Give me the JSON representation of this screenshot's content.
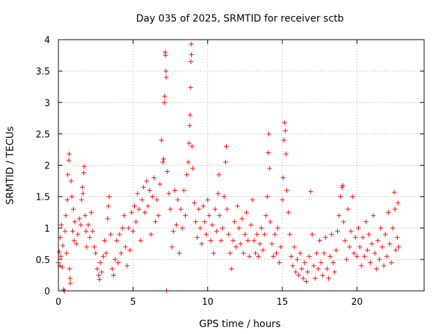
{
  "chart_data": {
    "type": "scatter",
    "title": "Day 035 of 2025, SRMTID for receiver sctb",
    "xlabel": "GPS time / hours",
    "ylabel": "SRMTID / TECUs",
    "xlim": [
      0,
      24.5
    ],
    "ylim": [
      0,
      4
    ],
    "xticks": [
      0,
      5,
      10,
      15,
      20
    ],
    "xtick_labels": [
      "0",
      "5",
      "10",
      "15",
      "20"
    ],
    "yticks": [
      0,
      0.5,
      1,
      1.5,
      2,
      2.5,
      3,
      3.5,
      4
    ],
    "ytick_labels": [
      "0",
      "0.5",
      "1",
      "1.5",
      "2",
      "2.5",
      "3",
      "3.5",
      "4"
    ],
    "grid": true,
    "marker": "+",
    "color": "#ff0000",
    "series": [
      {
        "name": "SRMTID",
        "points": [
          [
            0.0,
            0.45
          ],
          [
            0.05,
            0.62
          ],
          [
            0.1,
            0.4
          ],
          [
            0.12,
            0.85
          ],
          [
            0.15,
            0.55
          ],
          [
            0.2,
            1.05
          ],
          [
            0.25,
            0.38
          ],
          [
            0.3,
            0.72
          ],
          [
            0.35,
            0.02
          ],
          [
            0.4,
            0.0
          ],
          [
            0.45,
            0.95
          ],
          [
            0.5,
            1.2
          ],
          [
            0.55,
            0.6
          ],
          [
            0.6,
            1.45
          ],
          [
            0.62,
            1.85
          ],
          [
            0.7,
            2.08
          ],
          [
            0.72,
            2.18
          ],
          [
            0.75,
            0.35
          ],
          [
            0.78,
            0.2
          ],
          [
            0.8,
            0.12
          ],
          [
            0.85,
            1.75
          ],
          [
            0.9,
            1.5
          ],
          [
            0.95,
            0.95
          ],
          [
            1.0,
            1.3
          ],
          [
            1.05,
            0.8
          ],
          [
            1.1,
            1.1
          ],
          [
            1.2,
            0.75
          ],
          [
            1.3,
            0.9
          ],
          [
            1.4,
            1.15
          ],
          [
            1.5,
            1.05
          ],
          [
            1.55,
            1.45
          ],
          [
            1.6,
            1.65
          ],
          [
            1.65,
            1.55
          ],
          [
            1.7,
            1.88
          ],
          [
            1.72,
            1.98
          ],
          [
            1.8,
            1.2
          ],
          [
            1.85,
            0.95
          ],
          [
            1.9,
            0.7
          ],
          [
            2.0,
            1.05
          ],
          [
            2.1,
            0.85
          ],
          [
            2.2,
            1.25
          ],
          [
            2.3,
            0.95
          ],
          [
            2.4,
            0.7
          ],
          [
            2.5,
            0.6
          ],
          [
            2.6,
            0.35
          ],
          [
            2.7,
            0.25
          ],
          [
            2.75,
            0.18
          ],
          [
            2.8,
            0.45
          ],
          [
            2.9,
            0.3
          ],
          [
            3.0,
            0.55
          ],
          [
            3.1,
            0.8
          ],
          [
            3.2,
            0.6
          ],
          [
            3.3,
            1.15
          ],
          [
            3.35,
            1.35
          ],
          [
            3.4,
            1.5
          ],
          [
            3.5,
            0.9
          ],
          [
            3.6,
            0.35
          ],
          [
            3.7,
            0.25
          ],
          [
            3.8,
            0.5
          ],
          [
            3.9,
            0.8
          ],
          [
            4.0,
            0.45
          ],
          [
            4.1,
            0.9
          ],
          [
            4.2,
            0.6
          ],
          [
            4.3,
            1.0
          ],
          [
            4.4,
            1.2
          ],
          [
            4.5,
            0.7
          ],
          [
            4.6,
            0.4
          ],
          [
            4.7,
            1.0
          ],
          [
            4.8,
            0.65
          ],
          [
            4.9,
            1.25
          ],
          [
            5.0,
            0.95
          ],
          [
            5.1,
            1.35
          ],
          [
            5.2,
            1.1
          ],
          [
            5.3,
            1.55
          ],
          [
            5.4,
            1.3
          ],
          [
            5.5,
            0.8
          ],
          [
            5.6,
            1.45
          ],
          [
            5.7,
            1.65
          ],
          [
            5.8,
            1.25
          ],
          [
            5.9,
            1.75
          ],
          [
            6.0,
            1.35
          ],
          [
            6.1,
            1.6
          ],
          [
            6.2,
            0.9
          ],
          [
            6.3,
            1.5
          ],
          [
            6.4,
            1.8
          ],
          [
            6.5,
            1.1
          ],
          [
            6.6,
            1.45
          ],
          [
            6.7,
            1.2
          ],
          [
            6.8,
            1.7
          ],
          [
            6.9,
            2.4
          ],
          [
            7.0,
            2.05
          ],
          [
            7.05,
            2.1
          ],
          [
            7.1,
            3.0
          ],
          [
            7.12,
            3.1
          ],
          [
            7.15,
            3.8
          ],
          [
            7.18,
            3.75
          ],
          [
            7.2,
            3.5
          ],
          [
            7.22,
            3.4
          ],
          [
            7.25,
            0.0
          ],
          [
            7.3,
            1.9
          ],
          [
            7.4,
            1.55
          ],
          [
            7.5,
            1.3
          ],
          [
            7.6,
            0.7
          ],
          [
            7.7,
            0.95
          ],
          [
            7.8,
            1.6
          ],
          [
            7.9,
            1.05
          ],
          [
            8.0,
            1.45
          ],
          [
            8.1,
            0.6
          ],
          [
            8.2,
            1.3
          ],
          [
            8.3,
            1.0
          ],
          [
            8.4,
            1.6
          ],
          [
            8.5,
            1.2
          ],
          [
            8.6,
            1.85
          ],
          [
            8.7,
            2.05
          ],
          [
            8.75,
            2.35
          ],
          [
            8.8,
            2.63
          ],
          [
            8.82,
            2.8
          ],
          [
            8.85,
            3.24
          ],
          [
            8.88,
            3.65
          ],
          [
            8.9,
            3.93
          ],
          [
            8.92,
            3.76
          ],
          [
            8.95,
            2.3
          ],
          [
            9.0,
            1.95
          ],
          [
            9.1,
            1.4
          ],
          [
            9.2,
            1.1
          ],
          [
            9.3,
            0.85
          ],
          [
            9.4,
            1.3
          ],
          [
            9.5,
            1.0
          ],
          [
            9.6,
            0.75
          ],
          [
            9.7,
            1.35
          ],
          [
            9.8,
            1.1
          ],
          [
            9.9,
            0.9
          ],
          [
            10.0,
            1.45
          ],
          [
            10.1,
            1.2
          ],
          [
            10.2,
            0.8
          ],
          [
            10.3,
            1.05
          ],
          [
            10.4,
            0.6
          ],
          [
            10.5,
            1.3
          ],
          [
            10.6,
            0.95
          ],
          [
            10.7,
            1.55
          ],
          [
            10.75,
            1.85
          ],
          [
            10.8,
            1.2
          ],
          [
            10.9,
            0.8
          ],
          [
            11.0,
            1.0
          ],
          [
            11.1,
            1.5
          ],
          [
            11.2,
            2.05
          ],
          [
            11.25,
            2.3
          ],
          [
            11.3,
            1.3
          ],
          [
            11.4,
            0.9
          ],
          [
            11.5,
            0.6
          ],
          [
            11.6,
            0.35
          ],
          [
            11.7,
            0.8
          ],
          [
            11.8,
            1.1
          ],
          [
            11.9,
            0.7
          ],
          [
            12.0,
            1.35
          ],
          [
            12.1,
            1.0
          ],
          [
            12.2,
            0.75
          ],
          [
            12.3,
            1.15
          ],
          [
            12.4,
            0.6
          ],
          [
            12.5,
            0.9
          ],
          [
            12.6,
            1.25
          ],
          [
            12.7,
            0.8
          ],
          [
            12.8,
            0.55
          ],
          [
            12.9,
            1.05
          ],
          [
            13.0,
            1.45
          ],
          [
            13.1,
            0.8
          ],
          [
            13.2,
            0.6
          ],
          [
            13.3,
            0.9
          ],
          [
            13.4,
            0.55
          ],
          [
            13.5,
            0.75
          ],
          [
            13.6,
            1.0
          ],
          [
            13.7,
            0.65
          ],
          [
            13.8,
            0.9
          ],
          [
            13.9,
            1.2
          ],
          [
            14.0,
            1.5
          ],
          [
            14.05,
            2.2
          ],
          [
            14.1,
            2.5
          ],
          [
            14.15,
            1.95
          ],
          [
            14.2,
            1.1
          ],
          [
            14.3,
            0.75
          ],
          [
            14.4,
            0.55
          ],
          [
            14.5,
            0.9
          ],
          [
            14.6,
            0.6
          ],
          [
            14.7,
            1.0
          ],
          [
            14.8,
            0.45
          ],
          [
            14.9,
            0.7
          ],
          [
            15.0,
            1.45
          ],
          [
            15.05,
            1.8
          ],
          [
            15.1,
            2.4
          ],
          [
            15.15,
            2.68
          ],
          [
            15.2,
            2.55
          ],
          [
            15.25,
            2.18
          ],
          [
            15.3,
            1.6
          ],
          [
            15.4,
            1.25
          ],
          [
            15.5,
            0.9
          ],
          [
            15.6,
            0.55
          ],
          [
            15.7,
            0.4
          ],
          [
            15.8,
            0.7
          ],
          [
            15.9,
            0.3
          ],
          [
            16.0,
            0.5
          ],
          [
            16.1,
            0.25
          ],
          [
            16.2,
            0.6
          ],
          [
            16.3,
            0.35
          ],
          [
            16.4,
            0.2
          ],
          [
            16.5,
            0.45
          ],
          [
            16.6,
            0.15
          ],
          [
            16.7,
            0.3
          ],
          [
            16.8,
            0.55
          ],
          [
            16.9,
            1.58
          ],
          [
            17.0,
            0.9
          ],
          [
            17.1,
            0.4
          ],
          [
            17.2,
            0.2
          ],
          [
            17.3,
            0.6
          ],
          [
            17.4,
            0.35
          ],
          [
            17.5,
            0.8
          ],
          [
            17.6,
            0.45
          ],
          [
            17.7,
            0.25
          ],
          [
            17.8,
            0.6
          ],
          [
            17.9,
            0.85
          ],
          [
            18.0,
            0.35
          ],
          [
            18.1,
            0.2
          ],
          [
            18.2,
            0.55
          ],
          [
            18.3,
            0.9
          ],
          [
            18.4,
            0.45
          ],
          [
            18.5,
            0.3
          ],
          [
            18.6,
            0.65
          ],
          [
            18.7,
            0.95
          ],
          [
            18.8,
            1.2
          ],
          [
            18.9,
            1.5
          ],
          [
            19.0,
            1.65
          ],
          [
            19.05,
            1.68
          ],
          [
            19.1,
            1.1
          ],
          [
            19.2,
            0.8
          ],
          [
            19.3,
            0.5
          ],
          [
            19.4,
            1.3
          ],
          [
            19.5,
            0.7
          ],
          [
            19.6,
            0.95
          ],
          [
            19.7,
            1.5
          ],
          [
            19.8,
            0.6
          ],
          [
            19.9,
            0.85
          ],
          [
            20.0,
            0.55
          ],
          [
            20.1,
            1.0
          ],
          [
            20.2,
            0.7
          ],
          [
            20.3,
            0.4
          ],
          [
            20.4,
            0.85
          ],
          [
            20.5,
            0.55
          ],
          [
            20.6,
            1.1
          ],
          [
            20.7,
            0.65
          ],
          [
            20.8,
            0.9
          ],
          [
            20.9,
            0.45
          ],
          [
            21.0,
            0.75
          ],
          [
            21.1,
            1.2
          ],
          [
            21.2,
            0.6
          ],
          [
            21.3,
            0.35
          ],
          [
            21.4,
            0.8
          ],
          [
            21.5,
            0.5
          ],
          [
            21.6,
            1.0
          ],
          [
            21.7,
            0.7
          ],
          [
            21.8,
            0.4
          ],
          [
            21.9,
            0.9
          ],
          [
            22.0,
            0.55
          ],
          [
            22.1,
            1.25
          ],
          [
            22.2,
            0.75
          ],
          [
            22.3,
            0.45
          ],
          [
            22.4,
            1.0
          ],
          [
            22.5,
            1.57
          ],
          [
            22.55,
            1.3
          ],
          [
            22.6,
            0.65
          ],
          [
            22.7,
            0.85
          ],
          [
            22.75,
            1.4
          ],
          [
            22.8,
            0.7
          ]
        ]
      }
    ]
  }
}
